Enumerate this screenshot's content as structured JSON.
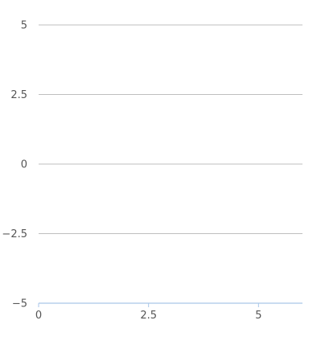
{
  "chart_data": {
    "type": "line",
    "title": "",
    "xlabel": "",
    "ylabel": "",
    "xlim": [
      0,
      6
    ],
    "ylim": [
      -5,
      5
    ],
    "x_ticks": [
      {
        "value": 0,
        "label": "0"
      },
      {
        "value": 2.5,
        "label": "2.5"
      },
      {
        "value": 5,
        "label": "5"
      }
    ],
    "y_ticks": [
      {
        "value": 5,
        "label": "5"
      },
      {
        "value": 2.5,
        "label": "2.5"
      },
      {
        "value": 0,
        "label": "0"
      },
      {
        "value": -2.5,
        "label": "−2.5"
      },
      {
        "value": -5,
        "label": "−5"
      }
    ],
    "grid": "horizontal",
    "series": [],
    "colors": {
      "grid": "#bfbfbf",
      "axis": "#a9c6e8",
      "tick_text": "#555555"
    }
  }
}
